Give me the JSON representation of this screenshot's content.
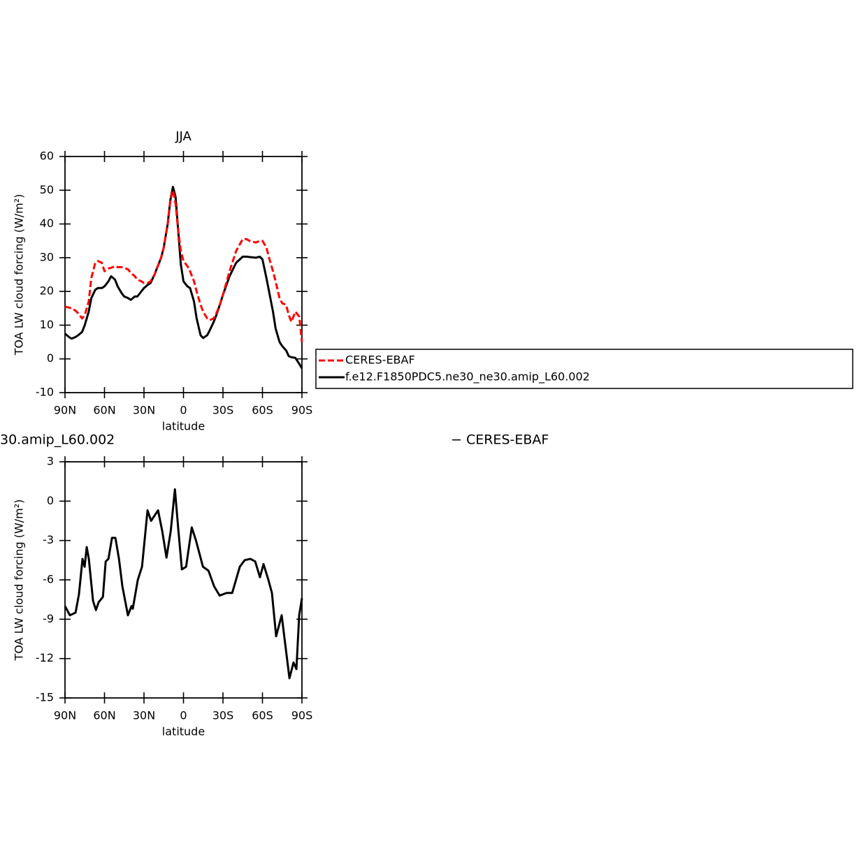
{
  "chart_data": [
    {
      "type": "line",
      "title": "JJA",
      "xlabel": "latitude",
      "ylabel": "TOA LW cloud forcing (W/m²)",
      "x": [
        90,
        87,
        85,
        82,
        80,
        77,
        75,
        72,
        70,
        67,
        65,
        62,
        60,
        57,
        55,
        52,
        50,
        47,
        45,
        42,
        40,
        37,
        35,
        32,
        30,
        27,
        25,
        22,
        20,
        17,
        15,
        12,
        10,
        8,
        6,
        4,
        2,
        0,
        -3,
        -5,
        -8,
        -10,
        -13,
        -15,
        -18,
        -20,
        -23,
        -25,
        -28,
        -30,
        -35,
        -40,
        -45,
        -48,
        -50,
        -55,
        -58,
        -60,
        -63,
        -65,
        -68,
        -70,
        -73,
        -75,
        -78,
        -80,
        -82,
        -85,
        -88,
        -90
      ],
      "series": [
        {
          "name": "CERES-EBAF",
          "color": "#ff0000",
          "line_style": "dashed",
          "values": [
            15.5,
            15.2,
            15,
            14.3,
            13.5,
            12,
            13,
            17,
            24,
            28.5,
            29,
            28.5,
            26,
            26.8,
            27,
            27.5,
            27.2,
            27.2,
            27,
            26.5,
            25.5,
            24.5,
            23.5,
            23,
            22.5,
            22.5,
            23,
            25,
            27,
            30,
            33,
            40,
            47,
            50,
            46,
            38,
            32,
            29,
            27.5,
            26,
            23,
            20,
            16,
            14,
            12,
            11.5,
            12,
            13.5,
            16.5,
            19,
            26,
            32,
            35.5,
            35.5,
            35,
            34.5,
            35,
            35,
            33,
            30,
            26,
            23,
            18,
            16.5,
            16,
            13,
            11,
            14,
            12.5,
            5
          ]
        },
        {
          "name": "f.e12.F1850PDC5.ne30_ne30.amip_L60.002",
          "color": "#000000",
          "line_style": "solid",
          "values": [
            7.5,
            6.5,
            6,
            6.5,
            7,
            8,
            10,
            14,
            18,
            20.5,
            21,
            21,
            21.5,
            23,
            24.5,
            23.5,
            21.5,
            19.5,
            18.5,
            18,
            17.5,
            18.5,
            18.5,
            20,
            21,
            22,
            22.5,
            25,
            27,
            30,
            33,
            40,
            47,
            51,
            48,
            38,
            28,
            23,
            21.5,
            21,
            17,
            12,
            7,
            6.2,
            7,
            8.5,
            11,
            13,
            16.5,
            19,
            24.5,
            28.5,
            30.3,
            30.3,
            30.2,
            30,
            30.3,
            29.5,
            24,
            20,
            14,
            9,
            5,
            3.8,
            2.5,
            0.8,
            0.5,
            0.3,
            -1.5,
            -2.8
          ]
        }
      ],
      "xlim": [
        90,
        -90
      ],
      "xticks": [
        {
          "value": 90,
          "label": "90N"
        },
        {
          "value": 60,
          "label": "60N"
        },
        {
          "value": 30,
          "label": "30N"
        },
        0,
        {
          "value": -30,
          "label": "30S"
        },
        {
          "value": -60,
          "label": "60S"
        },
        {
          "value": -90,
          "label": "90S"
        }
      ],
      "ylim": [
        -10,
        60
      ],
      "yticks": [
        -10,
        0,
        10,
        20,
        30,
        40,
        50,
        60
      ],
      "legend": "right"
    },
    {
      "type": "line",
      "title": "30.amip_L60.002",
      "subtitle": "− CERES-EBAF",
      "xlabel": "latitude",
      "ylabel": "TOA LW cloud forcing (W/m²)",
      "x": [
        90,
        86.3,
        82,
        79.4,
        76.7,
        75.1,
        73.5,
        71.9,
        68.7,
        66.5,
        64.4,
        61.2,
        59.1,
        57,
        54.3,
        51.7,
        49,
        46.4,
        42.2,
        39.5,
        38.5,
        34.7,
        31.5,
        27.3,
        24.6,
        19.3,
        16.1,
        12.9,
        9.7,
        6.5,
        3.8,
        1.2,
        -2,
        -6.3,
        -9.5,
        -14.8,
        -19,
        -23.3,
        -27.5,
        -32.7,
        -37,
        -42.8,
        -46.5,
        -50.8,
        -54.5,
        -58.1,
        -60.8,
        -64.5,
        -67.2,
        -70.4,
        -74.6,
        -77.3,
        -80.5,
        -83.6,
        -85.8,
        -87.9,
        -90
      ],
      "values": [
        -8,
        -8.7,
        -8.5,
        -7.1,
        -4.4,
        -5,
        -3.5,
        -4.4,
        -7.6,
        -8.3,
        -7.7,
        -7.3,
        -4.6,
        -4.4,
        -2.8,
        -2.8,
        -4.4,
        -6.5,
        -8.7,
        -8,
        -8.2,
        -6,
        -5,
        -0.7,
        -1.5,
        -0.7,
        -2.3,
        -4.3,
        -2.3,
        0.9,
        -2.3,
        -5.2,
        -5,
        -2,
        -3,
        -5,
        -5.3,
        -6.5,
        -7.2,
        -7,
        -7,
        -5,
        -4.5,
        -4.4,
        -4.6,
        -5.8,
        -4.8,
        -6,
        -7,
        -10.3,
        -8.7,
        -10.9,
        -13.5,
        -12.3,
        -12.8,
        -8.7,
        -7.4
      ],
      "color": "#000000",
      "xlim": [
        90,
        -90
      ],
      "xticks": [
        {
          "value": 90,
          "label": "90N"
        },
        {
          "value": 60,
          "label": "60N"
        },
        {
          "value": 30,
          "label": "30N"
        },
        0,
        {
          "value": -30,
          "label": "30S"
        },
        {
          "value": -60,
          "label": "60S"
        },
        {
          "value": -90,
          "label": "90S"
        }
      ],
      "ylim": [
        -15,
        3
      ],
      "yticks": [
        -15,
        -12,
        -9,
        -6,
        -3,
        0,
        3
      ]
    }
  ]
}
